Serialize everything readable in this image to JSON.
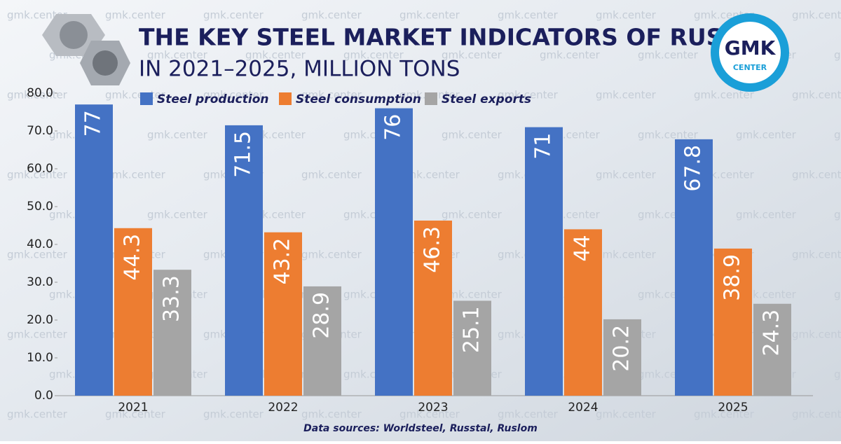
{
  "chart_data": {
    "type": "bar",
    "title": "THE KEY STEEL MARKET INDICATORS OF RUSSIA",
    "subtitle": "IN 2021–2025, MILLION TONS",
    "source": "Data sources: Worldsteel, Russtal, Ruslom",
    "logo": {
      "top": "GMK",
      "bottom": "CENTER"
    },
    "watermark": "gmk.center",
    "categories": [
      "2021",
      "2022",
      "2023",
      "2024",
      "2025"
    ],
    "series": [
      {
        "name": "Steel production",
        "color": "#4472c4",
        "values": [
          77,
          71.5,
          76,
          71,
          67.8
        ]
      },
      {
        "name": "Steel consumption",
        "color": "#ed7d31",
        "values": [
          44.3,
          43.2,
          46.3,
          44,
          38.9
        ]
      },
      {
        "name": "Steel exports",
        "color": "#a5a5a5",
        "values": [
          33.3,
          28.9,
          25.1,
          20.2,
          24.3
        ]
      }
    ],
    "ylim": [
      0,
      80
    ],
    "yticks": [
      {
        "value": 0,
        "label": "0.0"
      },
      {
        "value": 10,
        "label": "10.0"
      },
      {
        "value": 20,
        "label": "20.0"
      },
      {
        "value": 30,
        "label": "30.0"
      },
      {
        "value": 40,
        "label": "40.0"
      },
      {
        "value": 50,
        "label": "50.0"
      },
      {
        "value": 60,
        "label": "60.0"
      },
      {
        "value": 70,
        "label": "70.0"
      },
      {
        "value": 80,
        "label": "80.0"
      }
    ],
    "legend": "top"
  }
}
